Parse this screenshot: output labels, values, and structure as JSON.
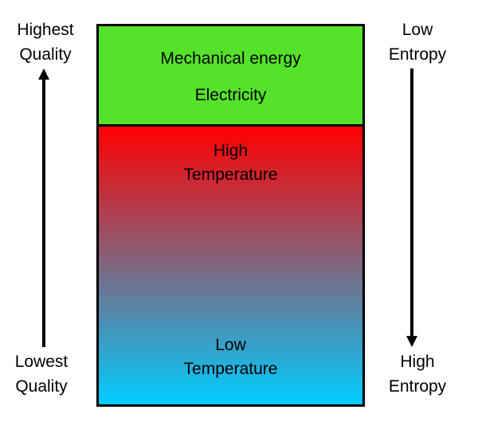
{
  "colors": {
    "work_fill": "#55e22a",
    "heat_top": "#ff0000",
    "heat_bottom": "#00ccff",
    "line": "#000000"
  },
  "left_axis": {
    "top_label": [
      "Highest",
      "Quality"
    ],
    "bottom_label": [
      "Lowest",
      "Quality"
    ],
    "arrow": "up"
  },
  "right_axis": {
    "top_label": [
      "Low",
      "Entropy"
    ],
    "bottom_label": [
      "High",
      "Entropy"
    ],
    "arrow": "down"
  },
  "work_box": {
    "line1": "Mechanical energy",
    "line2": "Electricity"
  },
  "heat_box": {
    "top_label": [
      "High",
      "Temperature"
    ],
    "bottom_label": [
      "Low",
      "Temperature"
    ]
  }
}
